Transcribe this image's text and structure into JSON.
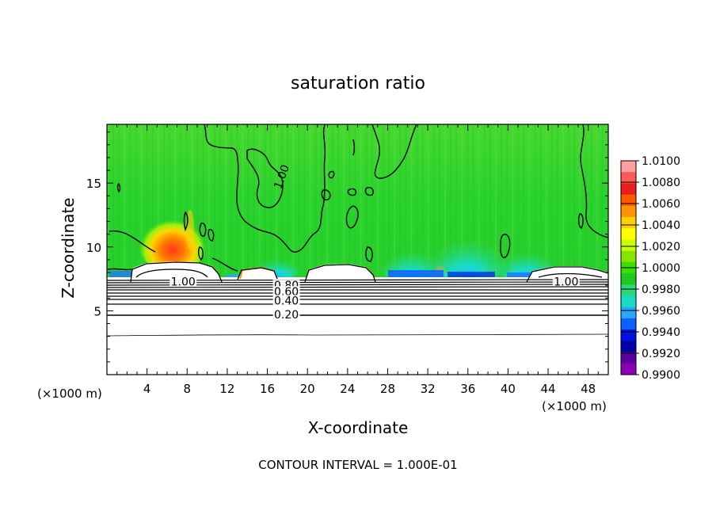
{
  "chart_data": {
    "type": "heatmap",
    "title": "saturation ratio",
    "xlabel": "X-coordinate",
    "ylabel": "Z-coordinate",
    "x_unit": "(×1000 m)",
    "y_unit": "(×1000 m)",
    "xlim": [
      0,
      50
    ],
    "ylim": [
      0,
      19.6
    ],
    "x_ticks": [
      4,
      8,
      12,
      16,
      20,
      24,
      28,
      32,
      36,
      40,
      44,
      48
    ],
    "y_ticks": [
      5,
      10,
      15
    ],
    "x_tick_labels": [
      "4",
      "8",
      "12",
      "16",
      "20",
      "24",
      "28",
      "32",
      "36",
      "40",
      "44",
      "48"
    ],
    "y_tick_labels": [
      "5",
      "10",
      "15"
    ],
    "footer": "CONTOUR INTERVAL = 1.000E-01",
    "colorbar": {
      "min": 0.99,
      "max": 1.01,
      "labels": [
        "1.0100",
        "1.0080",
        "1.0060",
        "1.0040",
        "1.0020",
        "1.0000",
        "0.9980",
        "0.9960",
        "0.9940",
        "0.9920",
        "0.9900"
      ],
      "colors": [
        "#ff9e9e",
        "#ff5a5a",
        "#ee1c1c",
        "#ff5a00",
        "#ff9400",
        "#ffd000",
        "#ffff00",
        "#cbff00",
        "#84e600",
        "#3ade00",
        "#1ec81e",
        "#2cd87a",
        "#18dcc8",
        "#28a8ff",
        "#1060ff",
        "#0010e0",
        "#0000a8",
        "#5a009c",
        "#8c00b4"
      ]
    },
    "contour_labels": [
      {
        "text": "1.00",
        "x": 7.6,
        "z": 7.3
      },
      {
        "text": "1.00",
        "x": 45.8,
        "z": 7.3
      },
      {
        "text": "1.00",
        "x": 17.4,
        "z": 15.5
      },
      {
        "text": "0.80",
        "x": 17.9,
        "z": 7.0
      },
      {
        "text": "0.60",
        "x": 17.9,
        "z": 6.5
      },
      {
        "text": "0.40",
        "x": 17.9,
        "z": 5.8
      },
      {
        "text": "0.20",
        "x": 17.9,
        "z": 4.7
      }
    ]
  }
}
